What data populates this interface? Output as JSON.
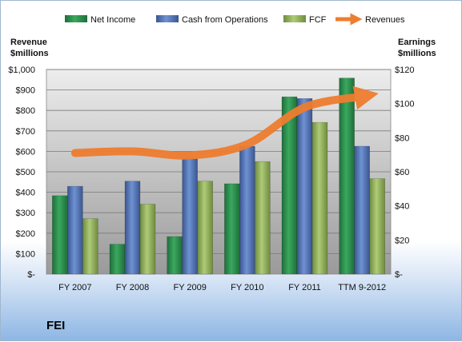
{
  "company": "FEI",
  "chart_data": {
    "type": "bar",
    "categories": [
      "FY 2007",
      "FY 2008",
      "FY 2009",
      "FY 2010",
      "FY 2011",
      "TTM 9-2012"
    ],
    "left_axis": {
      "title_line1": "Revenue",
      "title_line2": "$millions",
      "range": [
        0,
        1000
      ],
      "ticks": [
        0,
        100,
        200,
        300,
        400,
        500,
        600,
        700,
        800,
        900,
        1000
      ],
      "tick_labels": [
        "$-",
        "$100",
        "$200",
        "$300",
        "$400",
        "$500",
        "$600",
        "$700",
        "$800",
        "$900",
        "$1,000"
      ]
    },
    "right_axis": {
      "title_line1": "Earnings",
      "title_line2": "$millions",
      "range": [
        0,
        120
      ],
      "ticks": [
        0,
        20,
        40,
        60,
        80,
        100,
        120
      ],
      "tick_labels": [
        "$-",
        "$20",
        "$40",
        "$60",
        "$80",
        "$100",
        "$120"
      ]
    },
    "series": [
      {
        "name": "Net Income",
        "kind": "bar",
        "axis": "right",
        "color": "#2e8b4e",
        "values": [
          46,
          17.5,
          22,
          53,
          104,
          115
        ]
      },
      {
        "name": "Cash from Operations",
        "kind": "bar",
        "axis": "right",
        "color": "#4a6fb5",
        "values": [
          51.5,
          54.5,
          68,
          75,
          103,
          75
        ]
      },
      {
        "name": "FCF",
        "kind": "bar",
        "axis": "right",
        "color": "#8fb05a",
        "values": [
          32.5,
          41,
          54.5,
          66,
          89,
          56
        ]
      },
      {
        "name": "Revenues",
        "kind": "line",
        "axis": "left",
        "color": "#ee7d2f",
        "values": [
          592,
          600,
          580,
          635,
          815,
          868
        ]
      }
    ],
    "legend_position": "top",
    "grid": true
  }
}
